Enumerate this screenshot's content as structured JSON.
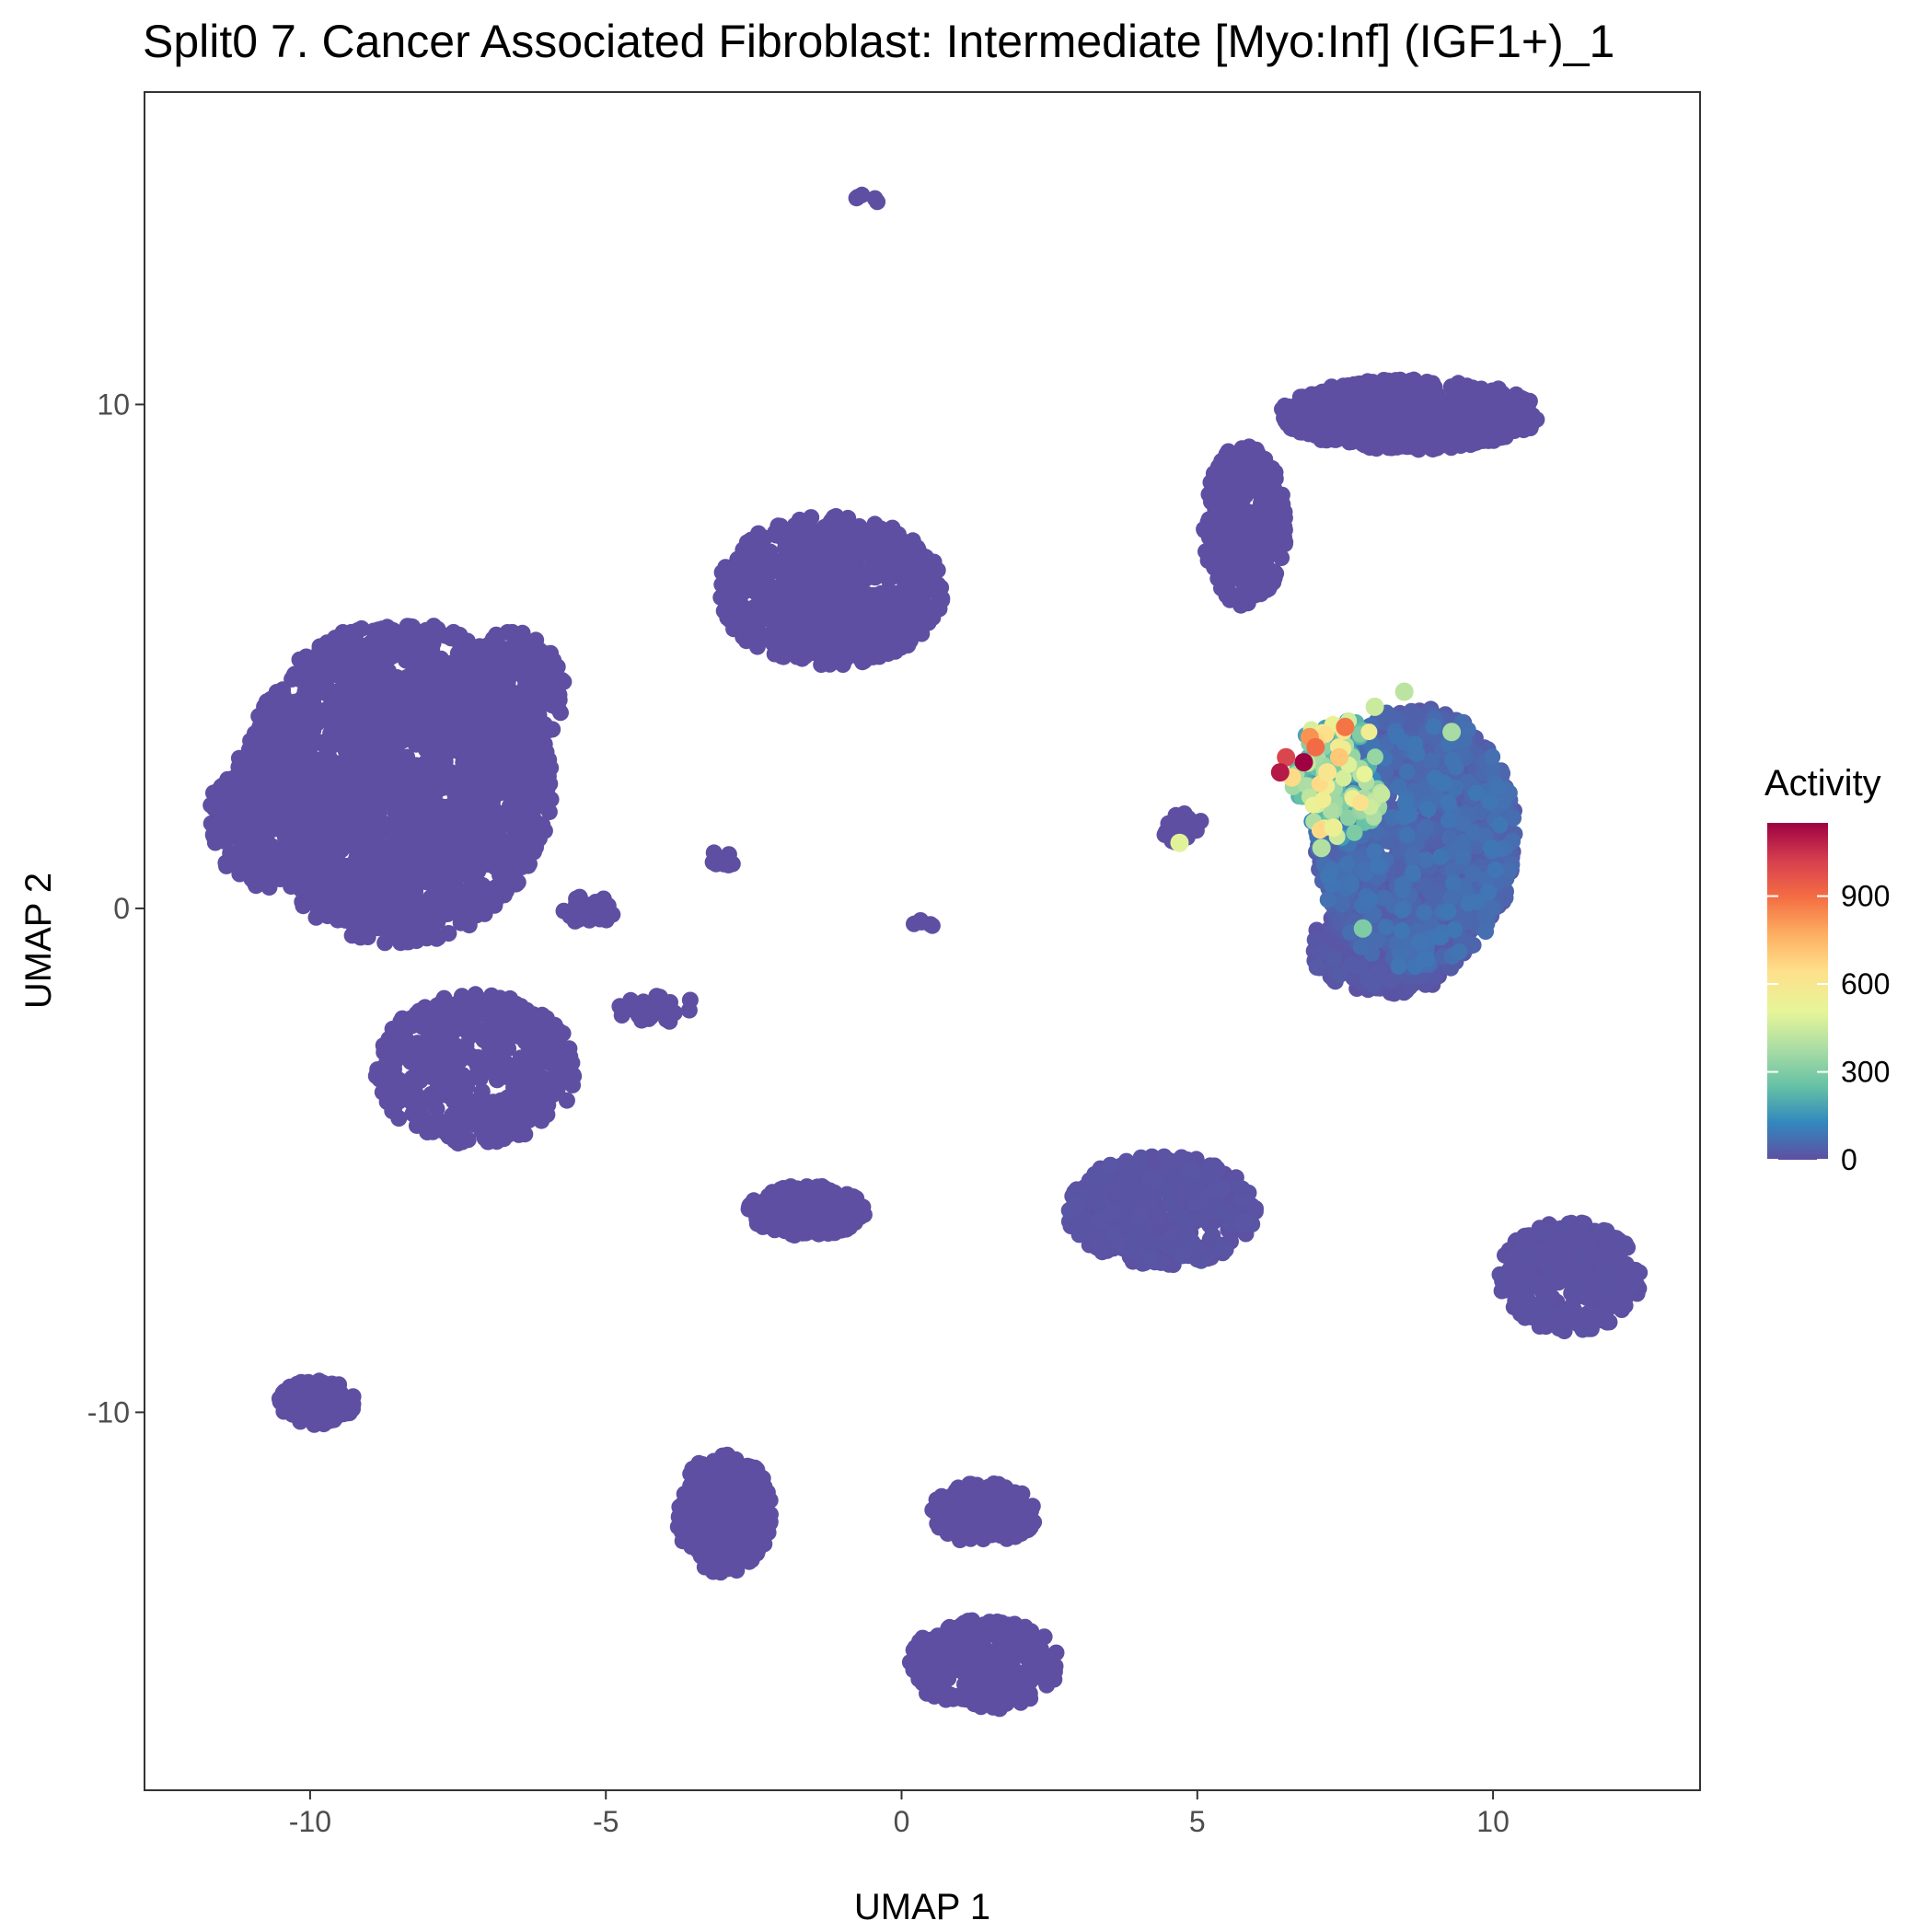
{
  "chart_data": {
    "type": "scatter",
    "title": "Split0 7. Cancer Associated Fibroblast: Intermediate [Myo:Inf] (IGF1+)_1",
    "xlabel": "UMAP 1",
    "ylabel": "UMAP 2",
    "xlim": [
      -12.8,
      13.5
    ],
    "ylim": [
      -17.5,
      16.2
    ],
    "x_ticks": [
      -10,
      -5,
      0,
      5,
      10
    ],
    "x_tick_labels": [
      "-10",
      "-5",
      "0",
      "5",
      "10"
    ],
    "y_ticks": [
      -10,
      0,
      10
    ],
    "y_tick_labels": [
      "-10",
      "0",
      "10"
    ],
    "grid": false,
    "legend": {
      "title": "Activity",
      "placement": "right",
      "type": "colorbar",
      "min": 0,
      "max": 1150,
      "breaks": [
        0,
        300,
        600,
        900
      ],
      "break_labels": [
        "0",
        "300",
        "600",
        "900"
      ],
      "palette": [
        "#5e4fa2",
        "#3288bd",
        "#66c2a5",
        "#abdda4",
        "#e6f598",
        "#fee08b",
        "#fdae61",
        "#f46d43",
        "#d53e4f",
        "#9e0142"
      ]
    },
    "colors": {
      "base_point": "#5e4fa2",
      "panel_border": "#333333"
    },
    "clusters": [
      {
        "name": "c1",
        "cx": -8.5,
        "cy": 2.5,
        "rx": 2.6,
        "ry": 3.2,
        "n": 1900,
        "activity": 0
      },
      {
        "name": "c1b",
        "cx": -7.2,
        "cy": -3.2,
        "rx": 1.7,
        "ry": 1.5,
        "n": 500,
        "activity": 0
      },
      {
        "name": "c1c",
        "cx": -10.7,
        "cy": 1.8,
        "rx": 1.0,
        "ry": 1.4,
        "n": 350,
        "activity": 0
      },
      {
        "name": "c1d",
        "cx": -6.6,
        "cy": 4.3,
        "rx": 0.9,
        "ry": 1.2,
        "n": 250,
        "activity": 0
      },
      {
        "name": "c2",
        "cx": -1.2,
        "cy": 6.3,
        "rx": 1.9,
        "ry": 1.5,
        "n": 700,
        "activity": 0
      },
      {
        "name": "c3a",
        "cx": 8.6,
        "cy": 9.8,
        "rx": 2.2,
        "ry": 0.7,
        "n": 700,
        "activity": 0
      },
      {
        "name": "c3b",
        "cx": 5.8,
        "cy": 7.6,
        "rx": 0.7,
        "ry": 1.6,
        "n": 350,
        "activity": 0
      },
      {
        "name": "c4",
        "cx": 8.7,
        "cy": 1.4,
        "rx": 1.7,
        "ry": 2.6,
        "n": 1200,
        "activity": 60
      },
      {
        "name": "c4b",
        "cx": 8.2,
        "cy": -0.8,
        "rx": 1.3,
        "ry": 0.9,
        "n": 350,
        "activity": 20
      },
      {
        "name": "c4hot",
        "cx": 7.4,
        "cy": 2.6,
        "rx": 0.8,
        "ry": 1.2,
        "n": 150,
        "activity": 450
      },
      {
        "name": "c5",
        "cx": -9.9,
        "cy": -9.8,
        "rx": 0.65,
        "ry": 0.45,
        "n": 130,
        "activity": 0
      },
      {
        "name": "c6",
        "cx": -3.0,
        "cy": -12.0,
        "rx": 0.8,
        "ry": 1.2,
        "n": 300,
        "activity": 0
      },
      {
        "name": "c7a",
        "cx": 1.4,
        "cy": -12.0,
        "rx": 0.9,
        "ry": 0.6,
        "n": 200,
        "activity": 0
      },
      {
        "name": "c7b",
        "cx": 1.4,
        "cy": -15.0,
        "rx": 1.3,
        "ry": 0.9,
        "n": 300,
        "activity": 0
      },
      {
        "name": "c8",
        "cx": -1.6,
        "cy": -6.0,
        "rx": 1.0,
        "ry": 0.5,
        "n": 260,
        "activity": 0
      },
      {
        "name": "c9",
        "cx": 4.4,
        "cy": -6.0,
        "rx": 1.6,
        "ry": 1.1,
        "n": 450,
        "activity": 10
      },
      {
        "name": "c10",
        "cx": 11.3,
        "cy": -7.3,
        "rx": 1.2,
        "ry": 1.1,
        "n": 350,
        "activity": 5
      },
      {
        "name": "c11",
        "cx": -5.3,
        "cy": 0.0,
        "rx": 0.5,
        "ry": 0.3,
        "n": 30,
        "activity": 0
      },
      {
        "name": "c12",
        "cx": -4.1,
        "cy": -2.0,
        "rx": 0.7,
        "ry": 0.3,
        "n": 30,
        "activity": 0
      },
      {
        "name": "c13",
        "cx": 4.7,
        "cy": 1.6,
        "rx": 0.4,
        "ry": 0.3,
        "n": 20,
        "activity": 0
      },
      {
        "name": "c14",
        "cx": -0.6,
        "cy": 14.0,
        "rx": 0.2,
        "ry": 0.2,
        "n": 5,
        "activity": 0
      },
      {
        "name": "c15",
        "cx": 0.3,
        "cy": -0.3,
        "rx": 0.25,
        "ry": 0.1,
        "n": 6,
        "activity": 0
      },
      {
        "name": "c16",
        "cx": -3.0,
        "cy": 1.0,
        "rx": 0.25,
        "ry": 0.15,
        "n": 10,
        "activity": 0
      }
    ],
    "highlight_points": [
      {
        "x": 6.8,
        "y": 2.9,
        "activity": 1150
      },
      {
        "x": 6.4,
        "y": 2.7,
        "activity": 1100
      },
      {
        "x": 6.5,
        "y": 3.0,
        "activity": 1000
      },
      {
        "x": 7.0,
        "y": 3.2,
        "activity": 900
      },
      {
        "x": 7.5,
        "y": 3.6,
        "activity": 880
      },
      {
        "x": 6.9,
        "y": 3.4,
        "activity": 820
      },
      {
        "x": 7.4,
        "y": 3.0,
        "activity": 700
      },
      {
        "x": 6.6,
        "y": 2.6,
        "activity": 650
      },
      {
        "x": 7.2,
        "y": 2.7,
        "activity": 600
      },
      {
        "x": 7.3,
        "y": 1.6,
        "activity": 550
      },
      {
        "x": 8.0,
        "y": 4.0,
        "activity": 450
      },
      {
        "x": 8.5,
        "y": 4.3,
        "activity": 420
      },
      {
        "x": 7.1,
        "y": 1.2,
        "activity": 400
      },
      {
        "x": 9.3,
        "y": 3.5,
        "activity": 380
      },
      {
        "x": 4.7,
        "y": 1.3,
        "activity": 500
      },
      {
        "x": 7.8,
        "y": -0.4,
        "activity": 300
      }
    ]
  }
}
